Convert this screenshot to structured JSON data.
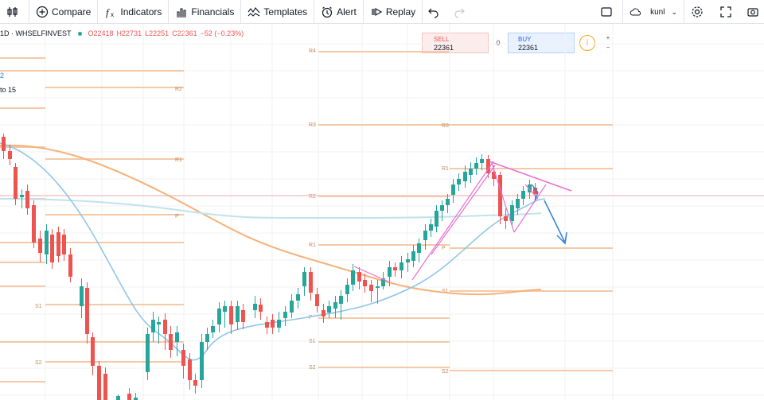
{
  "toolbar": {
    "compare": "Compare",
    "indicators": "Indicators",
    "financials": "Financials",
    "templates": "Templates",
    "alert": "Alert",
    "replay": "Replay",
    "user": "kunl"
  },
  "legend": {
    "symbol": "1D · WHSELFINVEST",
    "open": "O22418",
    "high": "H22731",
    "low": "L22251",
    "close": "C22361",
    "change": "−52 (−0.23%)"
  },
  "trade": {
    "sell_label": "SELL",
    "sell_price": "22361",
    "spread": "0",
    "buy_label": "BUY",
    "buy_price": "22361",
    "info": "i"
  },
  "left_texts": {
    "a": "2",
    "b": "to 15"
  },
  "pivot_labels": [
    "R4",
    "R3",
    "R2",
    "R1",
    "P",
    "S1",
    "S2",
    "R3",
    "R1",
    "P",
    "S1",
    "S2",
    "R2",
    "R1",
    "P",
    "S1",
    "S2"
  ],
  "colors": {
    "pivot": "#f5c9a6",
    "candle_up": "#26a69a",
    "candle_down": "#ef5350",
    "ma_slow": "#f5b27a",
    "ma_fast": "#90c6ea",
    "ma_mid": "#bfe3ec",
    "drawing_pink": "#e96fd0",
    "arrow_blue": "#2f80d9",
    "hline": "#f4c6c6"
  },
  "icons": [
    "bar-style-icon",
    "compare-icon",
    "indicators-icon",
    "financials-icon",
    "templates-icon",
    "alert-icon",
    "replay-icon",
    "undo-icon",
    "redo-icon",
    "layout-icon",
    "cloud-icon",
    "settings-icon",
    "fullscreen-icon",
    "camera-icon"
  ]
}
